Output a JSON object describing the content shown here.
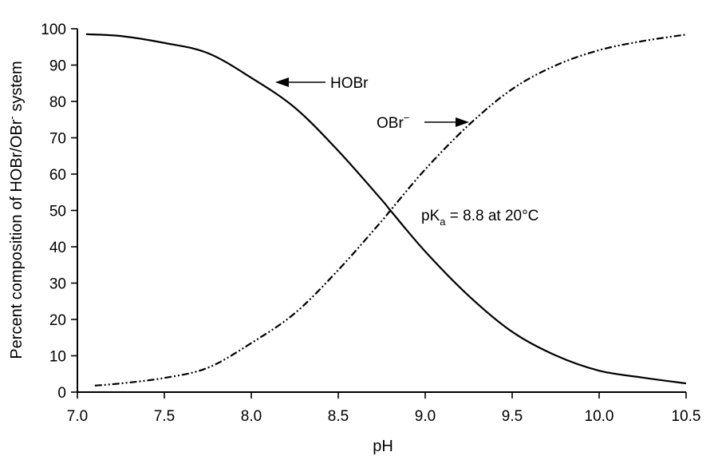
{
  "chart_data": {
    "type": "line",
    "title": "",
    "xlabel": "pH",
    "ylabel": "Percent composition of HOBr/OBr⁻ system",
    "xlim": [
      7.0,
      10.5
    ],
    "ylim": [
      0,
      100
    ],
    "x_ticks": [
      "7.0",
      "7.5",
      "8.0",
      "8.5",
      "9.0",
      "9.5",
      "10.0",
      "10.5"
    ],
    "y_ticks": [
      "0",
      "10",
      "20",
      "30",
      "40",
      "50",
      "60",
      "70",
      "80",
      "90",
      "100"
    ],
    "grid": false,
    "series": [
      {
        "name": "HOBr",
        "style": "solid",
        "x": [
          7.05,
          7.25,
          7.5,
          7.75,
          8.0,
          8.25,
          8.5,
          8.75,
          8.8,
          9.0,
          9.25,
          9.5,
          9.75,
          10.0,
          10.25,
          10.5
        ],
        "y": [
          98.5,
          98.0,
          96.1,
          93.3,
          86.5,
          78.3,
          66.4,
          52.9,
          50.0,
          38.7,
          26.5,
          16.6,
          10.1,
          5.9,
          4.0,
          2.4
        ]
      },
      {
        "name": "OBr⁻",
        "style": "dash-dot-dot",
        "x": [
          7.1,
          7.25,
          7.5,
          7.75,
          8.0,
          8.25,
          8.5,
          8.75,
          8.8,
          9.0,
          9.25,
          9.5,
          9.75,
          10.0,
          10.25,
          10.5
        ],
        "y": [
          1.8,
          2.4,
          3.9,
          6.7,
          13.5,
          21.7,
          33.6,
          47.1,
          50.0,
          61.3,
          73.5,
          83.4,
          89.9,
          94.1,
          96.6,
          98.4
        ]
      }
    ],
    "annotations": {
      "hobr_label": "HOBr",
      "obr_label": "OBr",
      "obr_sup": "−",
      "pka_prefix": "pK",
      "pka_sub": "a",
      "pka_suffix": " = 8.8 at 20°C"
    },
    "ylabel_parts": {
      "before": "Percent composition of HOBr/OBr",
      "sup": "-",
      "after": " system"
    }
  }
}
